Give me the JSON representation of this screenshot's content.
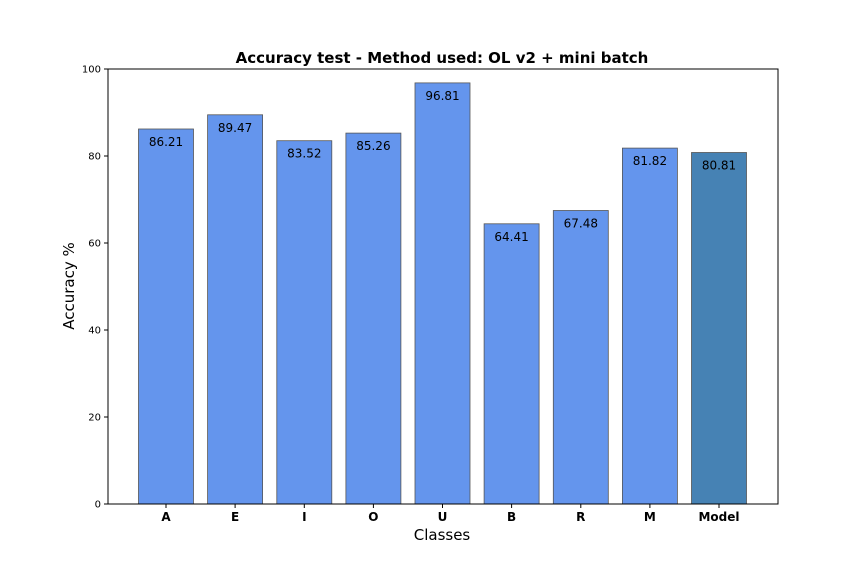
{
  "chart_data": {
    "type": "bar",
    "title": "Accuracy test - Method used: OL v2 + mini batch",
    "xlabel": "Classes",
    "ylabel": "Accuracy %",
    "categories": [
      "A",
      "E",
      "I",
      "O",
      "U",
      "B",
      "R",
      "M",
      "Model"
    ],
    "values": [
      86.21,
      89.47,
      83.52,
      85.26,
      96.81,
      64.41,
      67.48,
      81.82,
      80.81
    ],
    "value_labels": [
      "86.21",
      "89.47",
      "83.52",
      "85.26",
      "96.81",
      "64.41",
      "67.48",
      "81.82",
      "80.81"
    ],
    "ylim": [
      0,
      100
    ],
    "yticks": [
      0,
      20,
      40,
      60,
      80,
      100
    ],
    "ytick_labels": [
      "0",
      "20",
      "40",
      "60",
      "80",
      "100"
    ],
    "grid": false,
    "colors": {
      "bar": "#6495ED",
      "highlight_bar": "#4682B4",
      "edge": "#555555"
    },
    "highlight_category": "Model"
  }
}
